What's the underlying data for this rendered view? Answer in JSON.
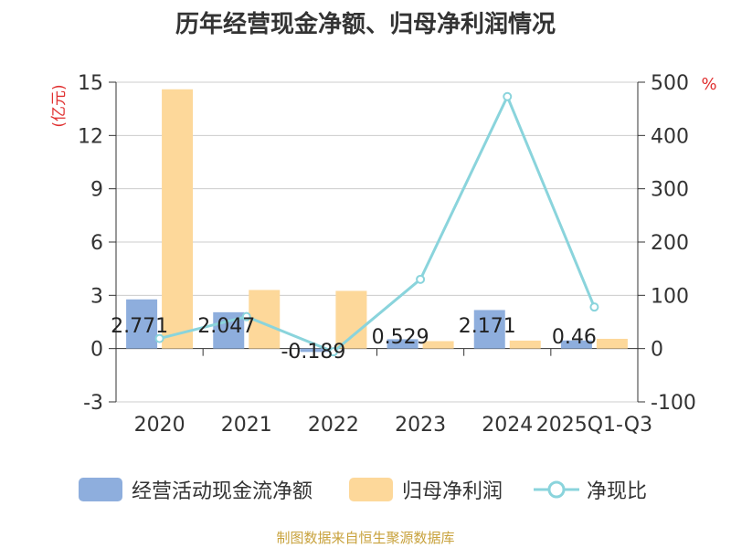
{
  "chart_data": {
    "type": "bar",
    "title": "历年经营现金净额、归母净利润情况",
    "categories": [
      "2020",
      "2021",
      "2022",
      "2023",
      "2024",
      "2025Q1-Q3"
    ],
    "y_left": {
      "label": "(亿元)",
      "ylim": [
        -3,
        15
      ],
      "ticks": [
        "-3",
        "0",
        "3",
        "6",
        "9",
        "12",
        "15"
      ]
    },
    "y_right": {
      "label": "%",
      "ylim": [
        -100,
        500
      ],
      "ticks": [
        "-100",
        "0",
        "100",
        "200",
        "300",
        "400",
        "500"
      ]
    },
    "series": [
      {
        "name": "经营活动现金流净额",
        "type": "bar",
        "axis": "left",
        "color": "#8eaedd",
        "values": [
          2.771,
          2.047,
          -0.189,
          0.529,
          2.171,
          0.46
        ],
        "labels": [
          "2.771",
          "2.047",
          "-0.189",
          "0.529",
          "2.171",
          "0.46"
        ]
      },
      {
        "name": "归母净利润",
        "type": "bar",
        "axis": "left",
        "color": "#fdd89a",
        "values": [
          14.6,
          3.3,
          3.25,
          0.42,
          0.45,
          0.55
        ]
      },
      {
        "name": "净现比",
        "type": "line",
        "axis": "right",
        "color": "#8ad4dc",
        "values": [
          19,
          60,
          -6,
          130,
          473,
          78
        ]
      }
    ],
    "grid": true,
    "legend": "bottom"
  },
  "source": "制图数据来自恒生聚源数据库"
}
